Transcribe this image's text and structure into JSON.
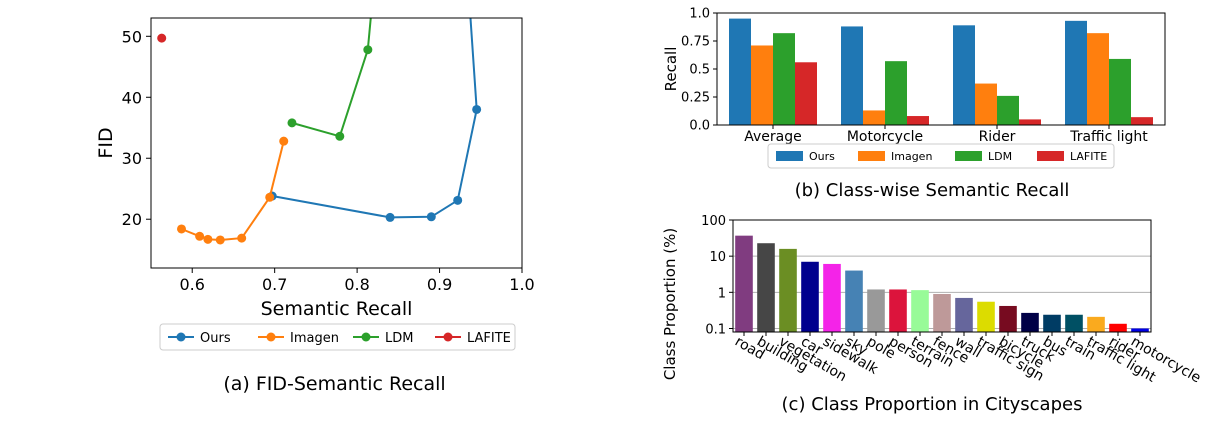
{
  "chart_data": [
    {
      "type": "line",
      "caption": "(a) FID-Semantic Recall",
      "xlabel": "Semantic Recall",
      "ylabel": "FID",
      "xlim": [
        0.55,
        1.0
      ],
      "ylim": [
        12,
        53
      ],
      "xticks": [
        0.6,
        0.7,
        0.8,
        0.9,
        1.0
      ],
      "xtick_labels": [
        "0.6",
        "0.7",
        "0.8",
        "0.9",
        "1.0"
      ],
      "yticks": [
        20,
        30,
        40,
        50
      ],
      "ytick_labels": [
        "20",
        "30",
        "40",
        "50"
      ],
      "grid": false,
      "legend_position": "bottom-outside",
      "series": [
        {
          "name": "Ours",
          "color": "#1f77b4",
          "points": [
            [
              0.697,
              23.8
            ],
            [
              0.84,
              20.3
            ],
            [
              0.89,
              20.4
            ],
            [
              0.922,
              23.1
            ],
            [
              0.945,
              38.0
            ],
            [
              0.935,
              58.0
            ]
          ],
          "markers": [
            true,
            true,
            true,
            true,
            true,
            false
          ]
        },
        {
          "name": "Imagen",
          "color": "#ff7f0e",
          "points": [
            [
              0.587,
              18.4
            ],
            [
              0.609,
              17.2
            ],
            [
              0.619,
              16.7
            ],
            [
              0.634,
              16.6
            ],
            [
              0.66,
              16.9
            ],
            [
              0.694,
              23.6
            ],
            [
              0.711,
              32.8
            ]
          ],
          "markers": [
            true,
            true,
            true,
            true,
            true,
            true,
            true
          ]
        },
        {
          "name": "LDM",
          "color": "#2ca02c",
          "points": [
            [
              0.721,
              35.8
            ],
            [
              0.779,
              33.6
            ],
            [
              0.813,
              47.8
            ],
            [
              0.82,
              58.0
            ]
          ],
          "markers": [
            true,
            true,
            true,
            false
          ]
        },
        {
          "name": "LAFITE",
          "color": "#d62728",
          "points": [
            [
              0.563,
              49.7
            ]
          ],
          "markers": [
            true
          ]
        }
      ]
    },
    {
      "type": "bar",
      "caption": "(b) Class-wise Semantic Recall",
      "ylabel": "Recall",
      "ylim": [
        0,
        1.0
      ],
      "yticks": [
        0,
        0.25,
        0.5,
        0.75,
        1.0
      ],
      "ytick_labels": [
        "0.0",
        "0.25",
        "0.5",
        "0.75",
        "1.0"
      ],
      "categories": [
        "Average",
        "Motorcycle",
        "Rider",
        "Traffic light"
      ],
      "legend_position": "bottom-outside",
      "series": [
        {
          "name": "Ours",
          "color": "#1f77b4",
          "values": [
            0.95,
            0.88,
            0.89,
            0.93
          ]
        },
        {
          "name": "Imagen",
          "color": "#ff7f0e",
          "values": [
            0.71,
            0.13,
            0.37,
            0.82
          ]
        },
        {
          "name": "LDM",
          "color": "#2ca02c",
          "values": [
            0.82,
            0.57,
            0.26,
            0.59
          ]
        },
        {
          "name": "LAFITE",
          "color": "#d62728",
          "values": [
            0.56,
            0.08,
            0.05,
            0.07
          ]
        }
      ]
    },
    {
      "type": "bar",
      "caption": "(c) Class Proportion in Cityscapes",
      "ylabel": "Class Proportion (%)",
      "yscale": "log",
      "ylim": [
        0.08,
        100
      ],
      "yticks": [
        0.1,
        1,
        10,
        100
      ],
      "ytick_labels": [
        "0.1",
        "1",
        "10",
        "100"
      ],
      "grid": true,
      "categories": [
        "road",
        "building",
        "vegetation",
        "car",
        "sidewalk",
        "sky",
        "pole",
        "person",
        "terrain",
        "fence",
        "wall",
        "traffic sign",
        "bicycle",
        "truck",
        "bus",
        "train",
        "traffic light",
        "rider",
        "motorcycle"
      ],
      "values": [
        36.9,
        22.8,
        15.9,
        7.0,
        6.1,
        4.0,
        1.2,
        1.2,
        1.15,
        0.9,
        0.7,
        0.55,
        0.42,
        0.27,
        0.24,
        0.24,
        0.21,
        0.135,
        0.1
      ],
      "colors": [
        "#803c80",
        "#464646",
        "#6b8e23",
        "#00008e",
        "#f423e8",
        "#4682b4",
        "#999999",
        "#dc143c",
        "#98fb98",
        "#be9999",
        "#66669c",
        "#dcdc00",
        "#770b20",
        "#000046",
        "#003c64",
        "#005064",
        "#faaa1e",
        "#ff0000",
        "#0000e6"
      ]
    }
  ]
}
